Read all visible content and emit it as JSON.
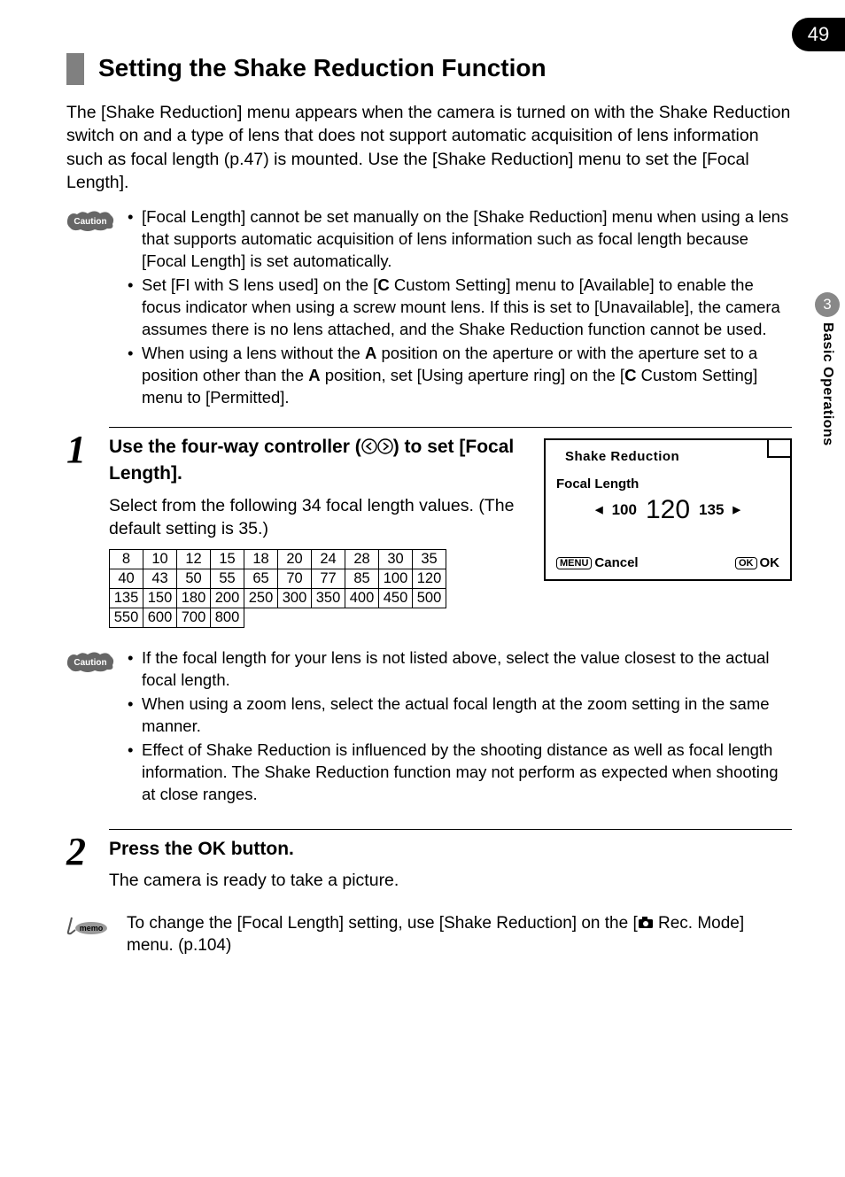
{
  "page_number": "49",
  "side_tab": {
    "chapter_number": "3",
    "label": "Basic Operations"
  },
  "heading": "Setting the Shake Reduction Function",
  "intro_paragraph": "The [Shake Reduction] menu appears when the camera is turned on with the Shake Reduction switch on and a type of lens that does not support automatic acquisition of lens information such as focal length (p.47) is mounted. Use the [Shake Reduction] menu to set the [Focal Length].",
  "caution1": {
    "item1": "[Focal Length] cannot be set manually on the [Shake Reduction] menu when using a lens that supports automatic acquisition of lens information such as focal length because [Focal Length] is set automatically.",
    "item2_a": "Set [FI with S lens used] on the [",
    "item2_b": " Custom Setting] menu to [Available] to enable the focus indicator when using a screw mount lens. If this is set to [Unavailable], the camera assumes there is no lens attached, and the Shake Reduction function cannot be used.",
    "item3_a": "When using a lens without the ",
    "item3_b": " position on the aperture or with the aperture set to a position other than the ",
    "item3_c": " position, set [Using aperture ring] on the [",
    "item3_d": " Custom Setting] menu to [Permitted]."
  },
  "step1": {
    "number": "1",
    "title_a": "Use the four-way controller (",
    "title_b": ") to set [Focal Length].",
    "desc": "Select from the following 34 focal length values. (The default setting is 35.)"
  },
  "focal_table": {
    "rows": [
      [
        "8",
        "10",
        "12",
        "15",
        "18",
        "20",
        "24",
        "28",
        "30",
        "35"
      ],
      [
        "40",
        "43",
        "50",
        "55",
        "65",
        "70",
        "77",
        "85",
        "100",
        "120"
      ],
      [
        "135",
        "150",
        "180",
        "200",
        "250",
        "300",
        "350",
        "400",
        "450",
        "500"
      ],
      [
        "550",
        "600",
        "700",
        "800",
        "",
        "",
        "",
        "",
        "",
        ""
      ]
    ]
  },
  "screen": {
    "title": "Shake Reduction",
    "fl_label": "Focal Length",
    "val_left": "100",
    "val_center": "120",
    "val_right": "135",
    "menu_label": "MENU",
    "cancel_label": "Cancel",
    "ok_box": "OK",
    "ok_label": "OK"
  },
  "caution2": {
    "item1": "If the focal length for your lens is not listed above, select the value closest to the actual focal length.",
    "item2": "When using a zoom lens, select the actual focal length at the zoom setting in the same manner.",
    "item3": "Effect of Shake Reduction is influenced by the shooting distance as well as focal length information. The Shake Reduction function may not perform as expected when shooting at close ranges."
  },
  "step2": {
    "number": "2",
    "title_a": "Press the ",
    "title_b": " button.",
    "desc": "The camera is ready to take a picture."
  },
  "memo": {
    "text_a": "To change the [Focal Length] setting, use [Shake Reduction] on the [",
    "text_b": " Rec. Mode] menu. (p.104)"
  },
  "symbols": {
    "C": "C",
    "A": "A",
    "OK": "OK"
  }
}
